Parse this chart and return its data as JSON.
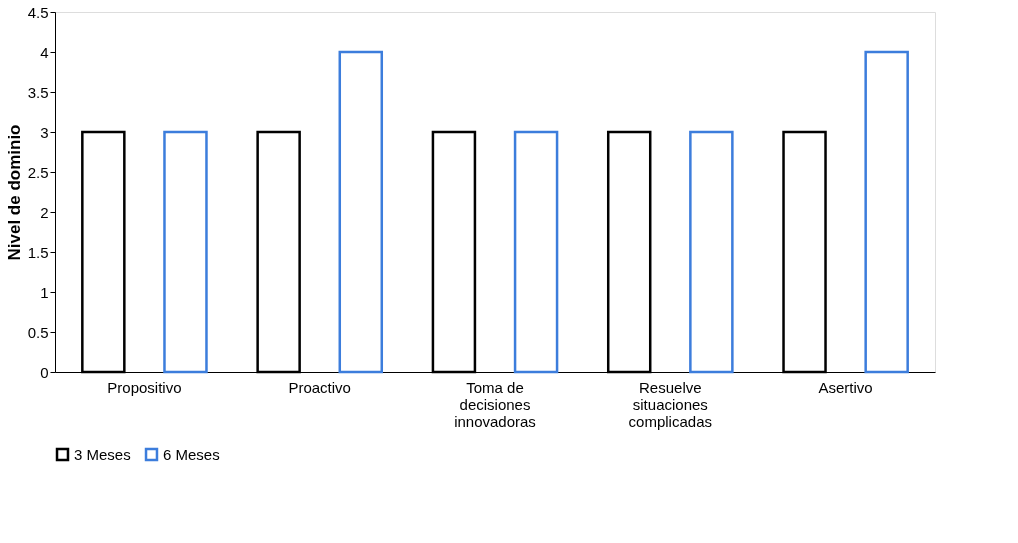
{
  "chart_data": {
    "type": "bar",
    "ylabel": "Nivel de dominio",
    "categories": [
      "Propositivo",
      "Proactivo",
      "Toma de decisiones innovadoras",
      "Resuelve situaciones complicadas",
      "Asertivo"
    ],
    "series": [
      {
        "name": "3 Meses",
        "color": "#000000",
        "values": [
          3,
          3,
          3,
          3,
          3
        ]
      },
      {
        "name": "6 Meses",
        "color": "#3c7ddc",
        "values": [
          3,
          4,
          3,
          3,
          4
        ]
      }
    ],
    "ylim": [
      0,
      4.5
    ],
    "yticks": [
      0,
      0.5,
      1,
      1.5,
      2,
      2.5,
      3,
      3.5,
      4,
      4.5
    ],
    "grid": false,
    "legend": "bottom"
  }
}
